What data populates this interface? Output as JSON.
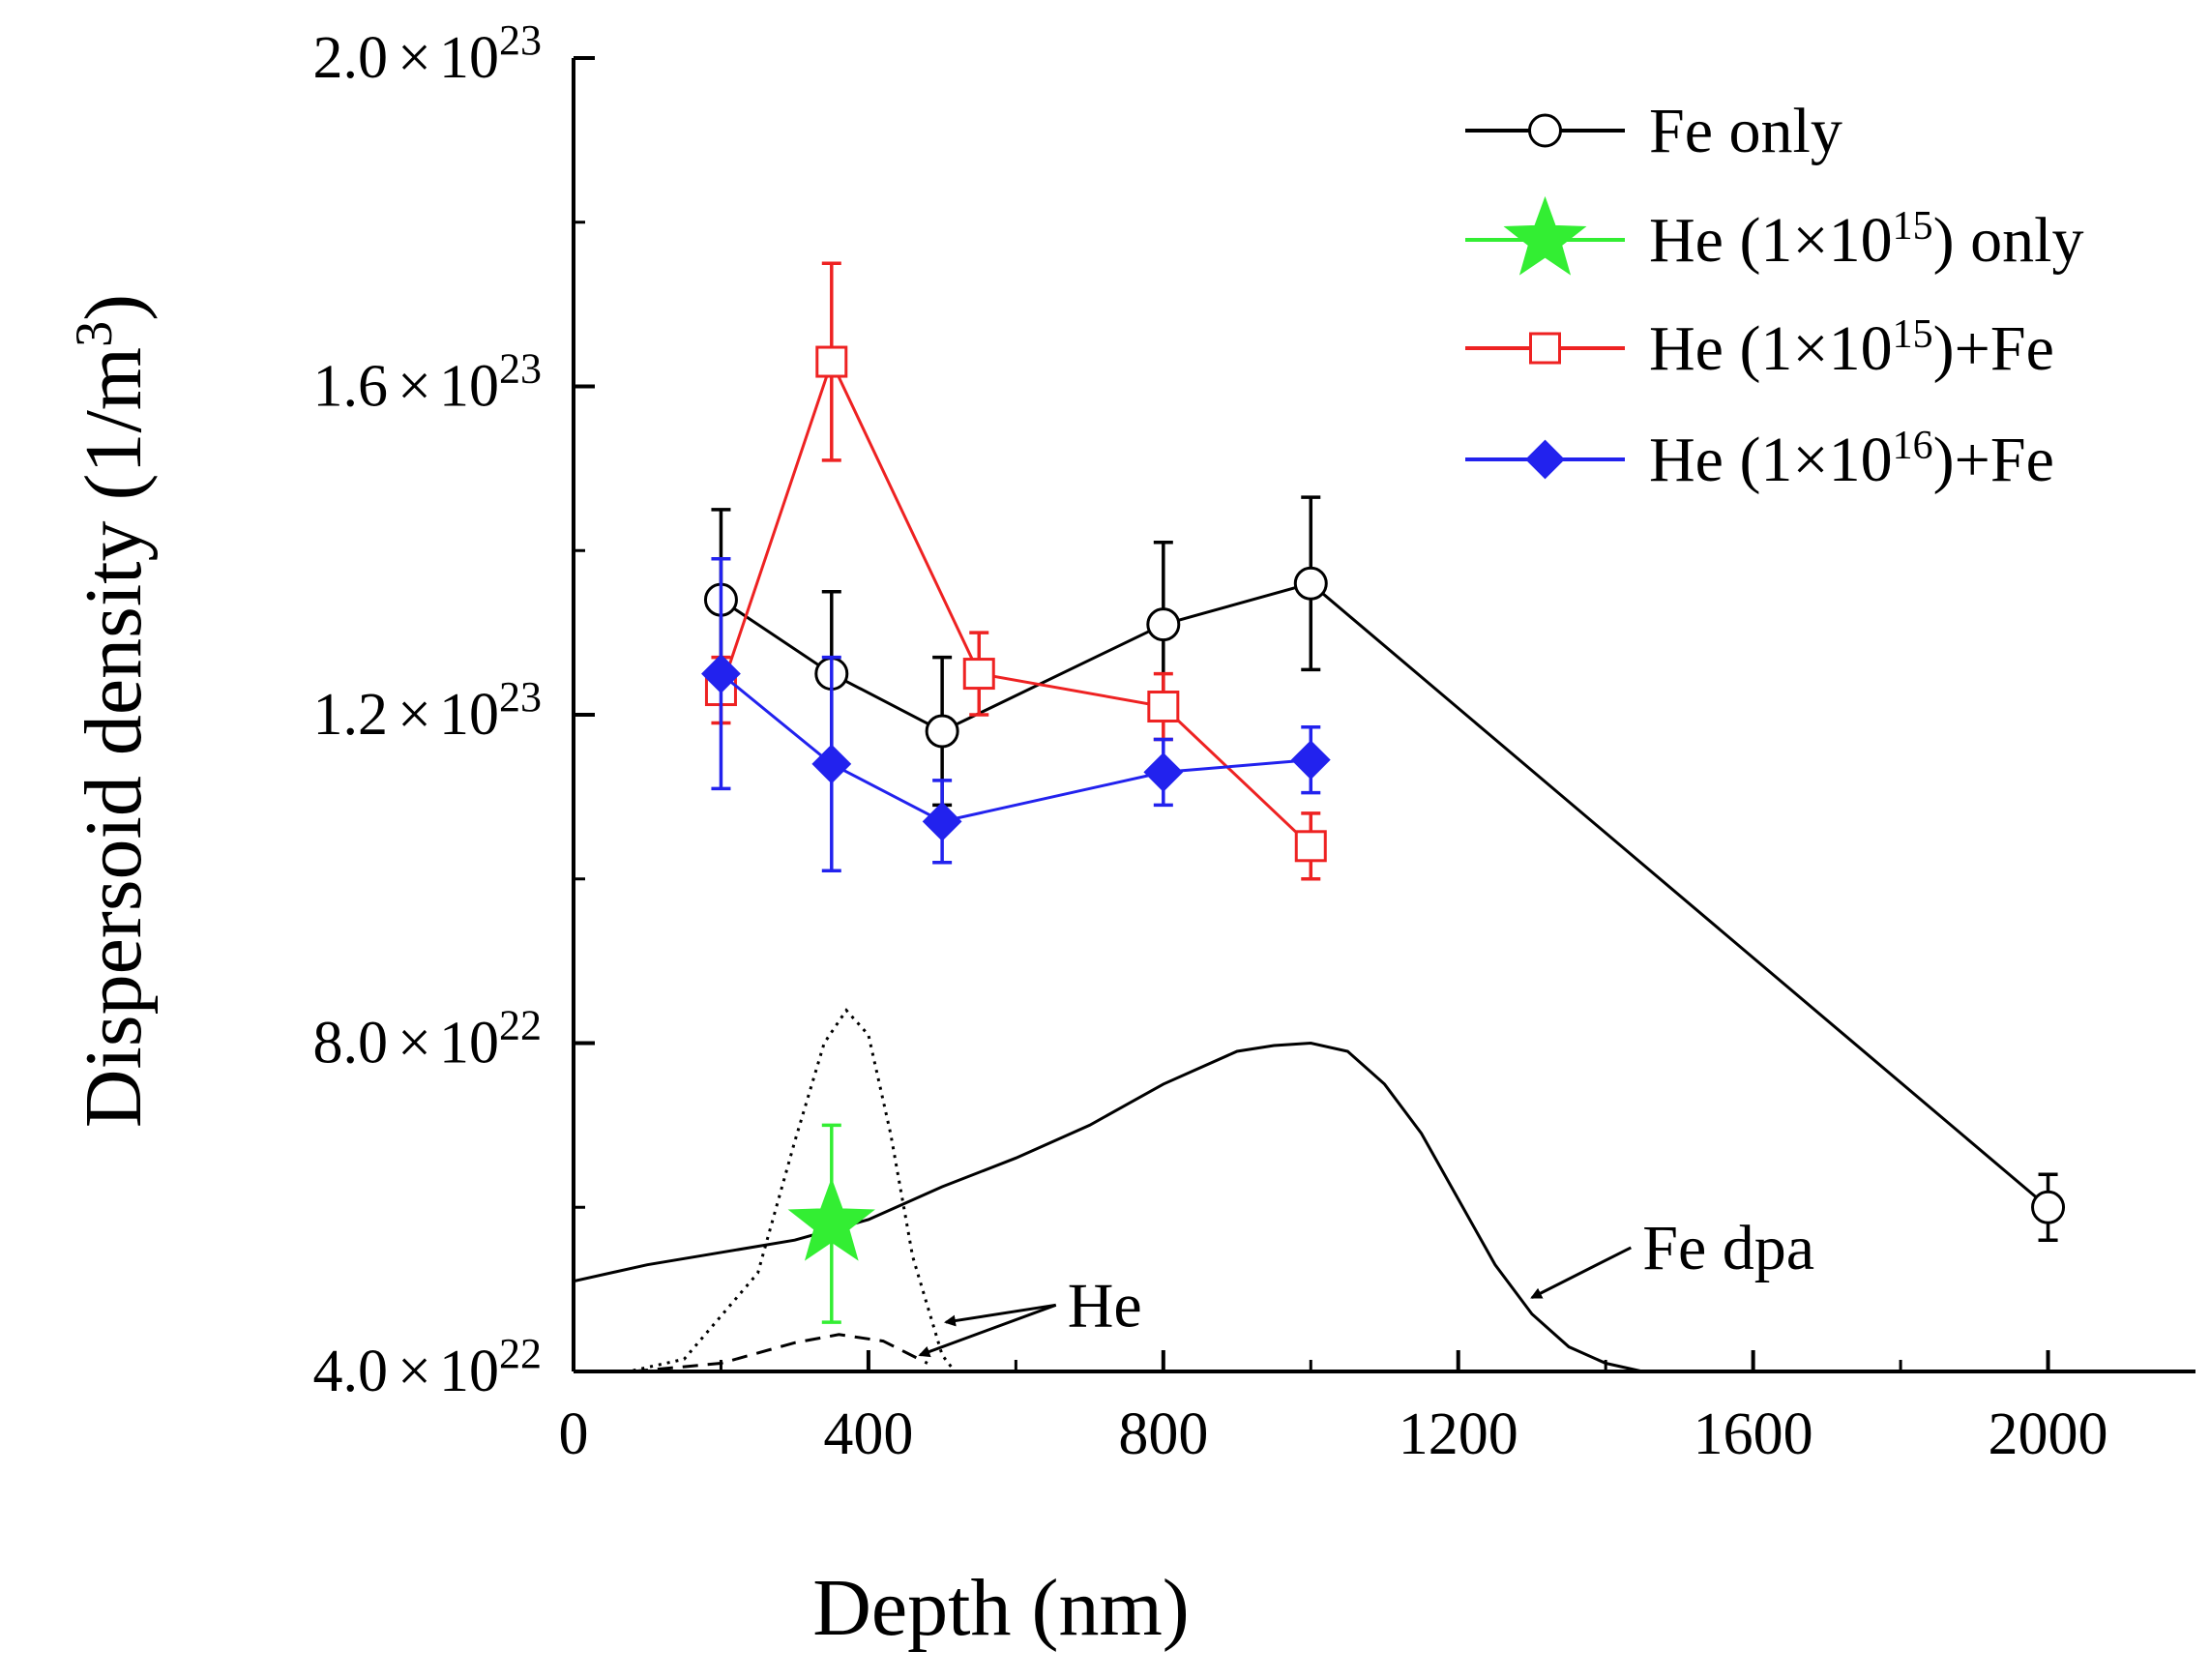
{
  "chart_data": {
    "type": "line",
    "title": "",
    "xlabel": "Depth (nm)",
    "ylabel": "Dispersoid density (1/m",
    "ylabel_sup": "3",
    "ylabel_close": ")",
    "xlim": [
      0,
      2200
    ],
    "ylim": [
      4e+22,
      2e+23
    ],
    "x_ticks": [
      {
        "value": 0,
        "label": "0"
      },
      {
        "value": 400,
        "label": "400"
      },
      {
        "value": 800,
        "label": "800"
      },
      {
        "value": 1200,
        "label": "1200"
      },
      {
        "value": 1600,
        "label": "1600"
      },
      {
        "value": 2000,
        "label": "2000"
      }
    ],
    "y_ticks": [
      {
        "value": 4e+22,
        "mantissa": "4.0",
        "times": "×",
        "base": "10",
        "exp": "22"
      },
      {
        "value": 8e+22,
        "mantissa": "8.0",
        "times": "×",
        "base": "10",
        "exp": "22"
      },
      {
        "value": 1.2e+23,
        "mantissa": "1.2",
        "times": "×",
        "base": "10",
        "exp": "23"
      },
      {
        "value": 1.6e+23,
        "mantissa": "1.6",
        "times": "×",
        "base": "10",
        "exp": "23"
      },
      {
        "value": 2e+23,
        "mantissa": "2.0",
        "times": "×",
        "base": "10",
        "exp": "23"
      }
    ],
    "grid": false,
    "legend_position": "top-right",
    "series": [
      {
        "name": "Fe only",
        "label_parts": {
          "pre": "Fe only",
          "sup": "",
          "post": ""
        },
        "color": "#000000",
        "marker": "open-circle",
        "points": [
          {
            "x": 200,
            "y": 1.34e+23,
            "err": 1.1e+22
          },
          {
            "x": 350,
            "y": 1.25e+23,
            "err": 1e+22
          },
          {
            "x": 500,
            "y": 1.18e+23,
            "err": 9e+21
          },
          {
            "x": 800,
            "y": 1.31e+23,
            "err": 1e+22
          },
          {
            "x": 1000,
            "y": 1.36e+23,
            "err": 1.05e+22
          },
          {
            "x": 2000,
            "y": 6e+22,
            "err": 4e+21
          }
        ]
      },
      {
        "name": "He (1×10^15) only",
        "label_parts": {
          "pre": "He (1×10",
          "sup": "15",
          "post": ") only"
        },
        "color": "#33ee33",
        "marker": "star",
        "points": [
          {
            "x": 350,
            "y": 5.8e+22,
            "err": 1.2e+22
          }
        ]
      },
      {
        "name": "He (1×10^15)+Fe",
        "label_parts": {
          "pre": "He (1×10",
          "sup": "15",
          "post": ")+Fe"
        },
        "color": "#ee2222",
        "marker": "open-square",
        "points": [
          {
            "x": 200,
            "y": 1.23e+23,
            "err": 4e+21
          },
          {
            "x": 350,
            "y": 1.63e+23,
            "err": 1.2e+22
          },
          {
            "x": 550,
            "y": 1.25e+23,
            "err": 5e+21
          },
          {
            "x": 800,
            "y": 1.21e+23,
            "err": 4e+21
          },
          {
            "x": 1000,
            "y": 1.04e+23,
            "err": 4e+21
          }
        ]
      },
      {
        "name": "He (1×10^16)+Fe",
        "label_parts": {
          "pre": "He (1×10",
          "sup": "16",
          "post": ")+Fe"
        },
        "color": "#2222ee",
        "marker": "filled-diamond",
        "points": [
          {
            "x": 200,
            "y": 1.25e+23,
            "err": 1.4e+22
          },
          {
            "x": 350,
            "y": 1.14e+23,
            "err": 1.3e+22
          },
          {
            "x": 500,
            "y": 1.07e+23,
            "err": 5e+21
          },
          {
            "x": 800,
            "y": 1.13e+23,
            "err": 4e+21
          },
          {
            "x": 1000,
            "y": 1.145e+23,
            "err": 4e+21
          }
        ]
      }
    ],
    "profiles": [
      {
        "name": "Fe dpa",
        "style": "solid",
        "x": [
          0,
          100,
          200,
          300,
          400,
          500,
          600,
          700,
          800,
          900,
          950,
          1000,
          1050,
          1100,
          1150,
          1200,
          1250,
          1300,
          1350,
          1400,
          1450,
          1500
        ],
        "y": [
          5.1e+22,
          5.3e+22,
          5.45e+22,
          5.6e+22,
          5.85e+22,
          6.25e+22,
          6.6e+22,
          7e+22,
          7.5e+22,
          7.9e+22,
          7.97e+22,
          8e+22,
          7.9e+22,
          7.5e+22,
          6.9e+22,
          6.1e+22,
          5.3e+22,
          4.7e+22,
          4.3e+22,
          4.1e+22,
          4e+22,
          4e+22
        ]
      },
      {
        "name": "He (dotted)",
        "style": "dotted",
        "x": [
          0,
          150,
          250,
          300,
          340,
          370,
          400,
          430,
          460,
          500,
          530
        ],
        "y": [
          3.85e+22,
          4.15e+22,
          5.2e+22,
          6.8e+22,
          8e+22,
          8.4e+22,
          8.1e+22,
          6.9e+22,
          5.4e+22,
          4.2e+22,
          3.85e+22
        ]
      },
      {
        "name": "He (dashed)",
        "style": "dashed",
        "x": [
          80,
          200,
          300,
          360,
          420,
          480
        ],
        "y": [
          4e+22,
          4.1e+22,
          4.35e+22,
          4.45e+22,
          4.37e+22,
          4.1e+22
        ]
      }
    ],
    "annotations": [
      {
        "text": "He",
        "x": 670,
        "y": 4.55e+22
      },
      {
        "text": "Fe dpa",
        "x": 1450,
        "y": 5.25e+22
      }
    ]
  }
}
